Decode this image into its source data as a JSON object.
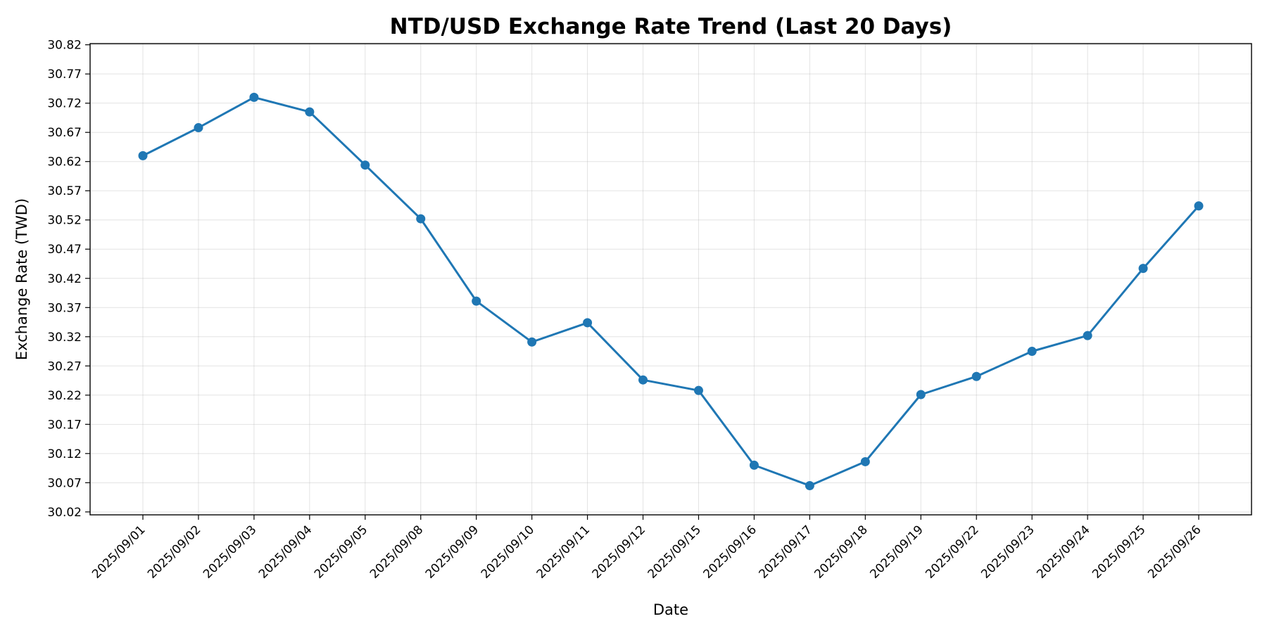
{
  "chart_data": {
    "type": "line",
    "title": "NTD/USD Exchange Rate Trend (Last 20 Days)",
    "xlabel": "Date",
    "ylabel": "Exchange Rate (TWD)",
    "categories": [
      "2025/09/01",
      "2025/09/02",
      "2025/09/03",
      "2025/09/04",
      "2025/09/05",
      "2025/09/08",
      "2025/09/09",
      "2025/09/10",
      "2025/09/11",
      "2025/09/12",
      "2025/09/15",
      "2025/09/16",
      "2025/09/17",
      "2025/09/18",
      "2025/09/19",
      "2025/09/22",
      "2025/09/23",
      "2025/09/24",
      "2025/09/25",
      "2025/09/26"
    ],
    "series": [
      {
        "values": [
          30.63,
          30.678,
          30.73,
          30.705,
          30.614,
          30.522,
          30.381,
          30.311,
          30.344,
          30.246,
          30.228,
          30.1,
          30.065,
          30.106,
          30.221,
          30.252,
          30.295,
          30.322,
          30.437,
          30.544
        ],
        "color": "#1f77b4",
        "marker": "circle"
      }
    ],
    "ylim": [
      30.015,
      30.822
    ],
    "yticks": [
      30.02,
      30.07,
      30.12,
      30.17,
      30.22,
      30.27,
      30.32,
      30.37,
      30.42,
      30.47,
      30.52,
      30.57,
      30.62,
      30.67,
      30.72,
      30.77,
      30.82
    ],
    "grid": true,
    "legend": "none"
  }
}
